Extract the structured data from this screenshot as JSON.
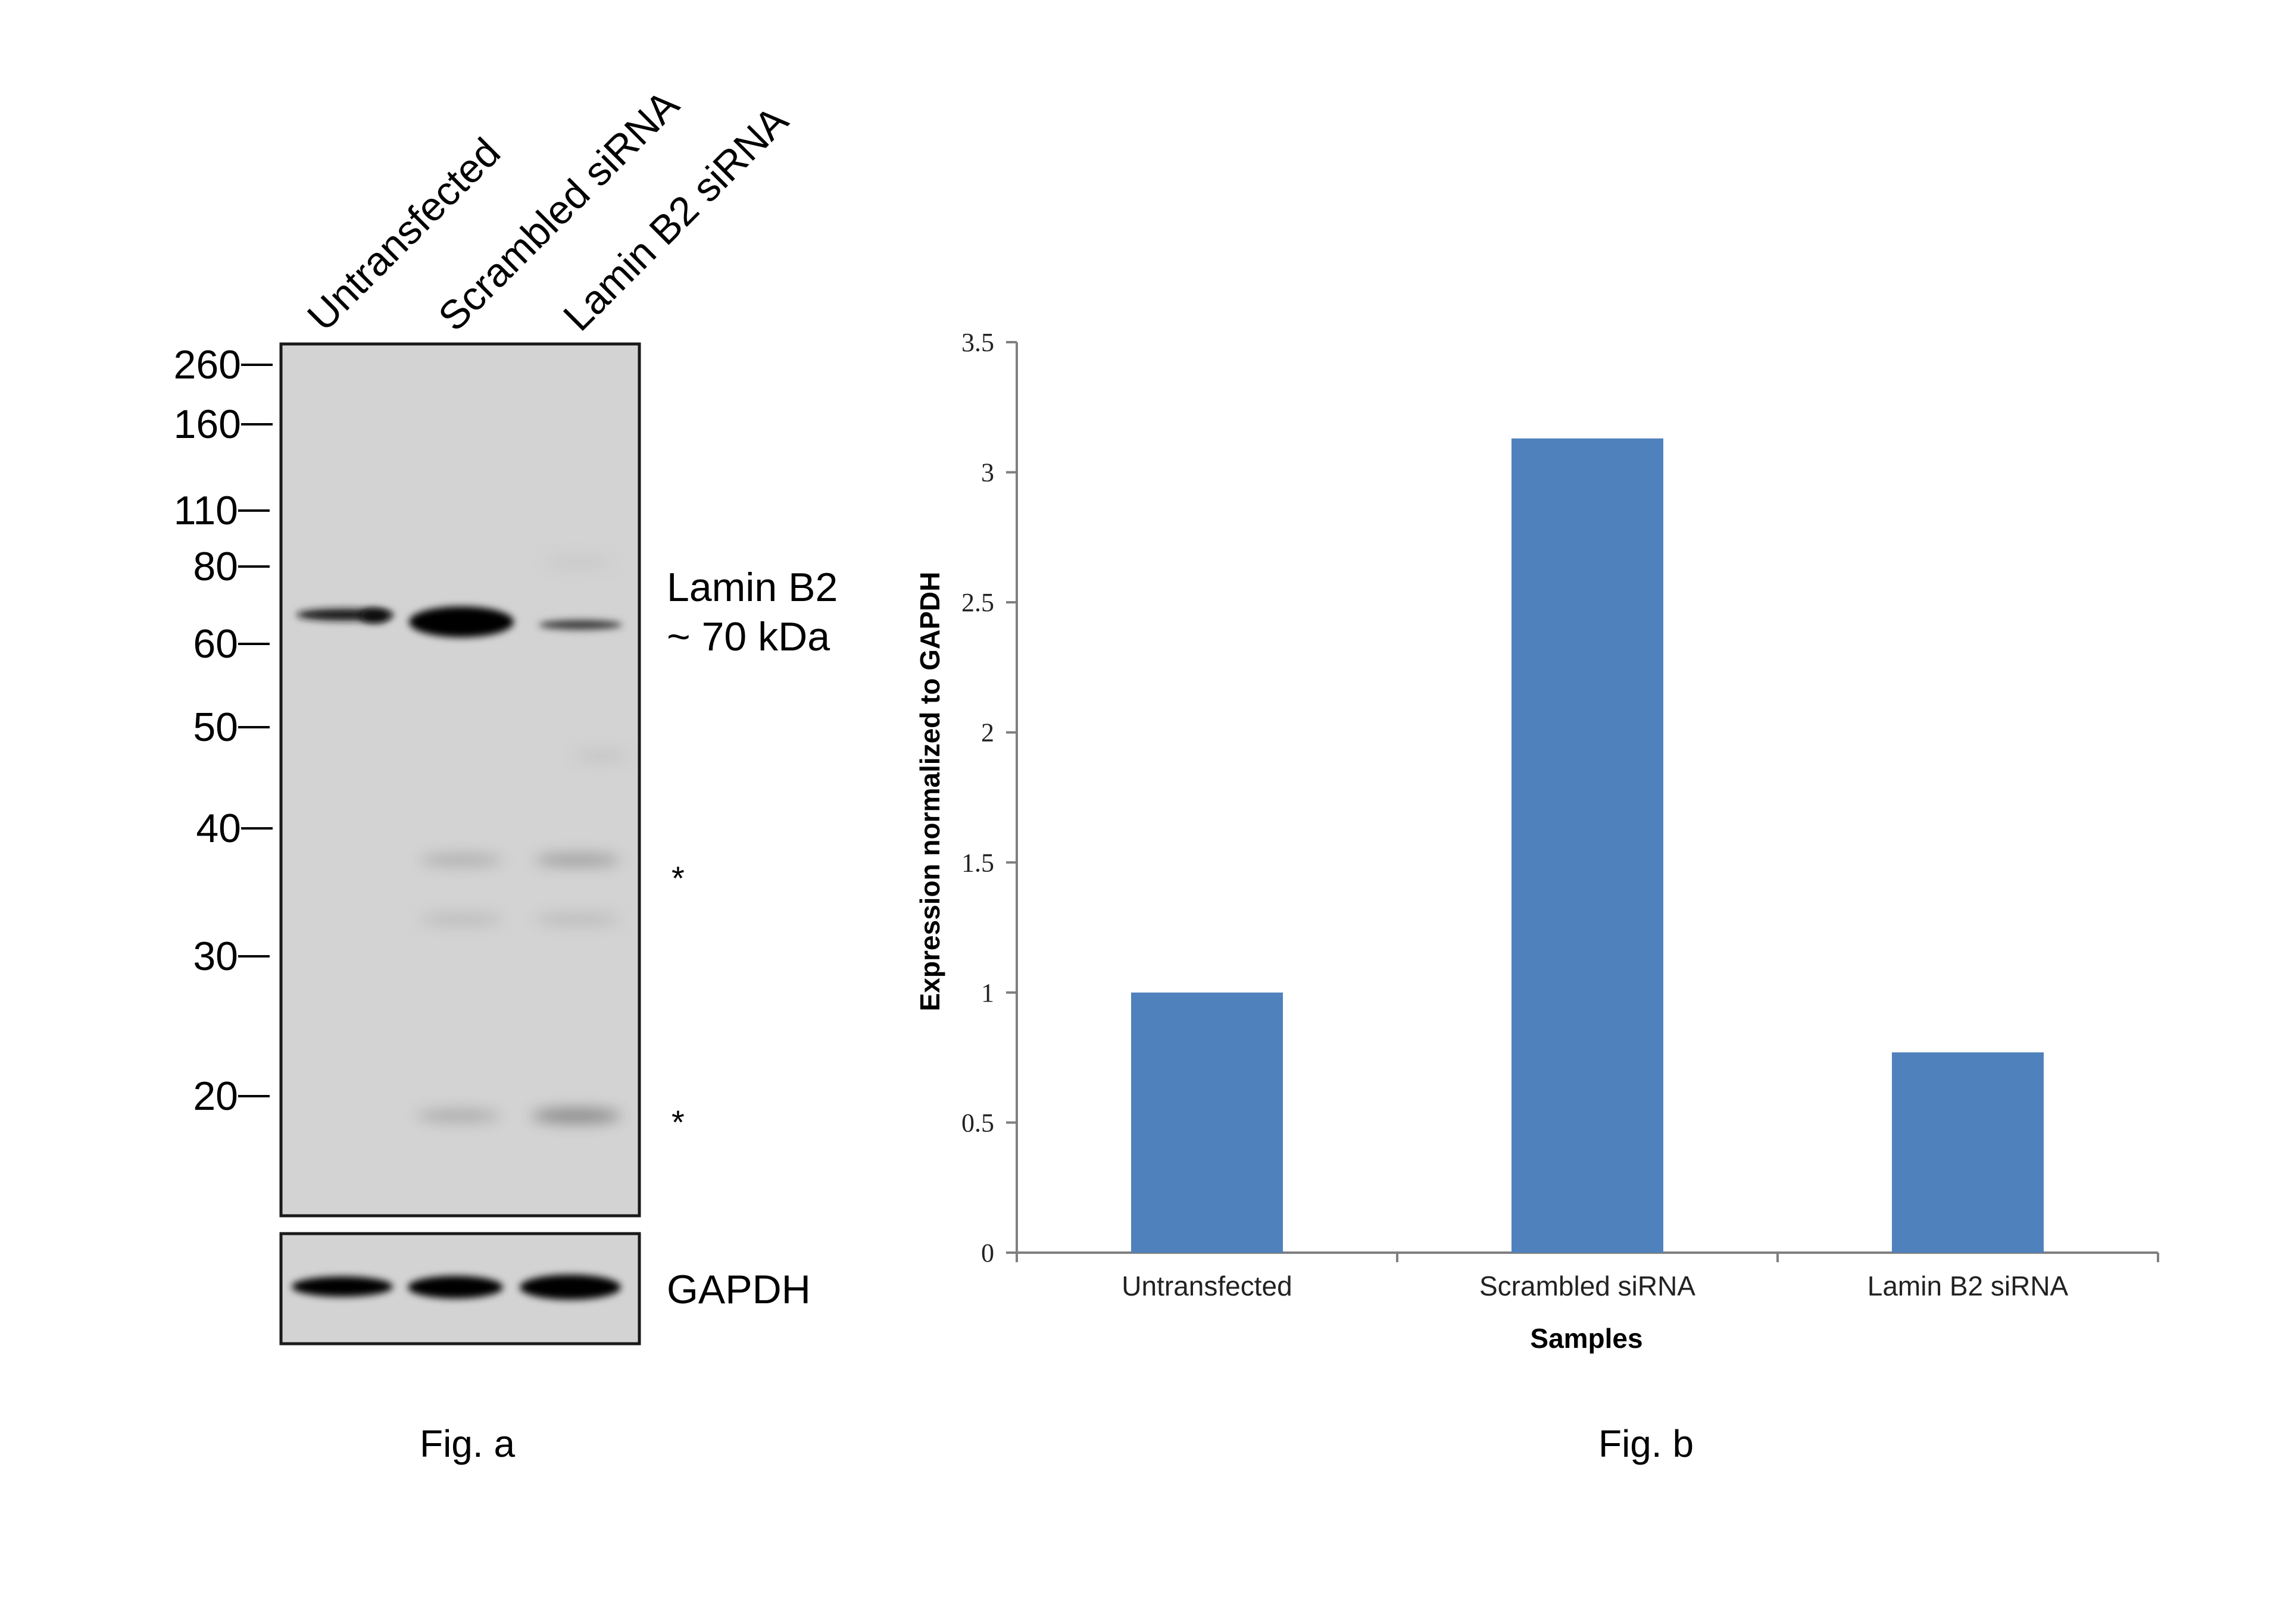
{
  "western_blot": {
    "lane_labels": [
      "Untransfected",
      "Scrambled siRNA",
      "Lamin B2 siRNA"
    ],
    "mw_markers": [
      "260",
      "160",
      "110",
      "80",
      "60",
      "50",
      "40",
      "30",
      "20"
    ],
    "mw_values_kda": [
      260,
      160,
      110,
      80,
      60,
      50,
      40,
      30,
      20
    ],
    "band_label_line1": "Lamin B2",
    "band_label_line2": "~ 70 kDa",
    "nonspecific_marker": "*",
    "loading_control_label": "GAPDH",
    "caption": "Fig. a",
    "colors": {
      "membrane": "#d3d3d3",
      "band": "#111111"
    }
  },
  "chart_data": {
    "type": "bar",
    "title": "",
    "categories": [
      "Untransfected",
      "Scrambled siRNA",
      "Lamin B2 siRNA"
    ],
    "values": [
      1.0,
      3.13,
      0.77
    ],
    "xlabel": "Samples",
    "ylabel": "Expression normalized to GAPDH",
    "ylim": [
      0,
      3.5
    ],
    "yticks": [
      0,
      0.5,
      1,
      1.5,
      2,
      2.5,
      3,
      3.5
    ],
    "ytick_labels": [
      "0",
      "0.5",
      "1",
      "1.5",
      "2",
      "2.5",
      "3",
      "3.5"
    ],
    "grid": false,
    "legend": "none",
    "bar_color": "#4f81bd",
    "caption": "Fig. b"
  }
}
